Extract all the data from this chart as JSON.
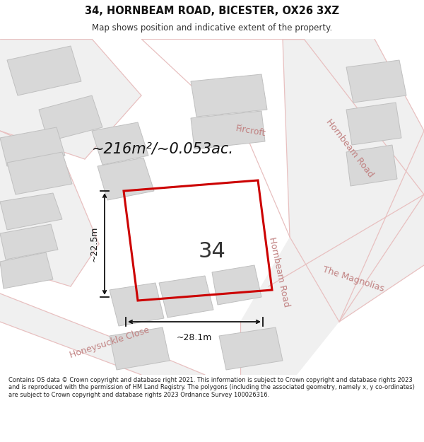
{
  "title": "34, HORNBEAM ROAD, BICESTER, OX26 3XZ",
  "subtitle": "Map shows position and indicative extent of the property.",
  "area_text": "~216m²/~0.053ac.",
  "property_number": "34",
  "dim_width": "~28.1m",
  "dim_height": "~22.5m",
  "footer_text": "Contains OS data © Crown copyright and database right 2021. This information is subject to Crown copyright and database rights 2023 and is reproduced with the permission of HM Land Registry. The polygons (including the associated geometry, namely x, y co-ordinates) are subject to Crown copyright and database rights 2023 Ordnance Survey 100026316.",
  "highlight_color": "#cc0000",
  "bg_color": "#e8e8e8",
  "road_color": "#f5f5f5",
  "building_color": "#d8d8d8",
  "building_edge": "#c0c0c0",
  "road_line_color": "#e8c0c0",
  "label_color": "#c08080",
  "footer_bg": "#ffffff",
  "title_color": "#111111",
  "subtitle_color": "#333333",
  "dim_color": "#111111"
}
